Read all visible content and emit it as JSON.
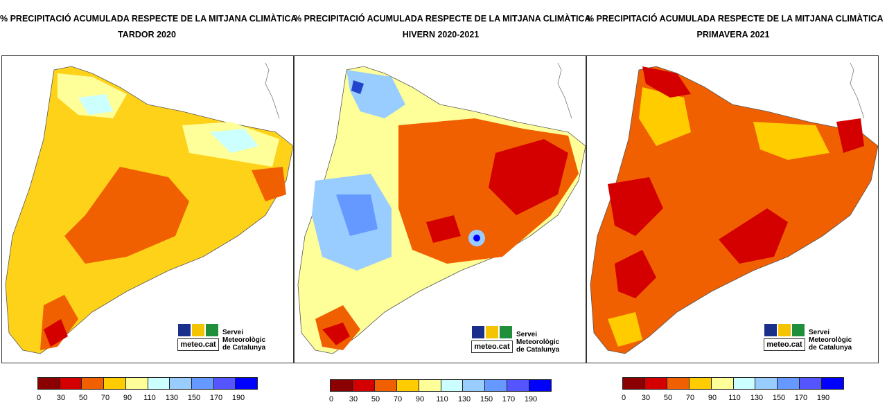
{
  "panels": [
    {
      "title": "% PRECIPITACIÓ ACUMULADA RESPECTE DE LA MITJANA CLIMÀTICA",
      "subtitle": "TARDOR 2020"
    },
    {
      "title": "% PRECIPITACIÓ ACUMULADA RESPECTE DE LA MITJANA CLIMÀTICA",
      "subtitle": "HIVERN 2020-2021"
    },
    {
      "title": "% PRECIPITACIÓ ACUMULADA RESPECTE DE LA MITJANA CLIMÀTICA",
      "subtitle": "PRIMAVERA 2021"
    }
  ],
  "logo": {
    "wordmark": "meteo.cat",
    "org_line1": "Servei Meteorològic",
    "org_line2": "de Catalunya"
  },
  "legend": {
    "ticks": [
      "0",
      "30",
      "50",
      "70",
      "90",
      "110",
      "130",
      "150",
      "170",
      "190"
    ],
    "colors": [
      "#8b0000",
      "#d40000",
      "#f06000",
      "#ffcc00",
      "#ffff99",
      "#ccffff",
      "#99ccff",
      "#6699ff",
      "#5555ff",
      "#0000ff"
    ]
  }
}
